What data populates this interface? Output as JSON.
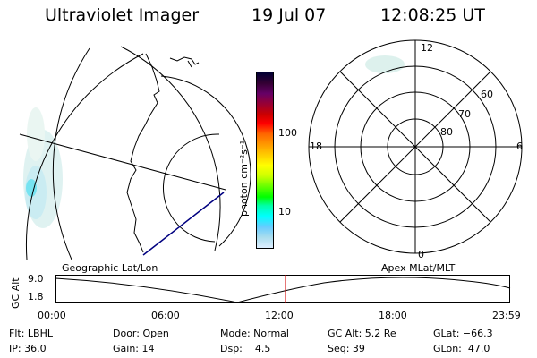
{
  "header": {
    "title": "Ultraviolet Imager",
    "date": "19 Jul 07",
    "time": "12:08:25 UT"
  },
  "colorbar": {
    "unit_label": "photon cm⁻²s⁻¹",
    "ticks": [
      "100",
      "10"
    ],
    "colors": [
      "#000033",
      "#330033",
      "#660066",
      "#990033",
      "#cc0000",
      "#ff0000",
      "#ff6600",
      "#ff9900",
      "#ffcc00",
      "#ffff00",
      "#ccff00",
      "#66ff00",
      "#00ff00",
      "#00ffaa",
      "#00ffff",
      "#66ccff",
      "#aaddee",
      "#ddeeff"
    ]
  },
  "polar_plot": {
    "mlt_labels": {
      "top": "12",
      "bottom": "0",
      "left": "18",
      "right": "6"
    },
    "lat_labels": [
      "60",
      "70",
      "80"
    ]
  },
  "timeline": {
    "left_title": "Geographic Lat/Lon",
    "right_title": "Apex MLat/MLT",
    "ylabel": "GC Alt",
    "y_top": "9.0",
    "y_bottom": "1.8",
    "x_ticks": [
      "00:00",
      "06:00",
      "12:00",
      "18:00",
      "23:59"
    ],
    "current_marker_hour": 12.14
  },
  "info": {
    "flt": "Flt: LBHL",
    "ip": "IP: 36.0",
    "door": "Door: Open",
    "gain": "Gain: 14",
    "mode": "Mode: Normal",
    "dsp": "Dsp:    4.5",
    "gc_alt": "GC Alt: 5.2 Re",
    "seq": "Seq: 39",
    "glat": "GLat: −66.3",
    "glon": "GLon:  47.0"
  }
}
